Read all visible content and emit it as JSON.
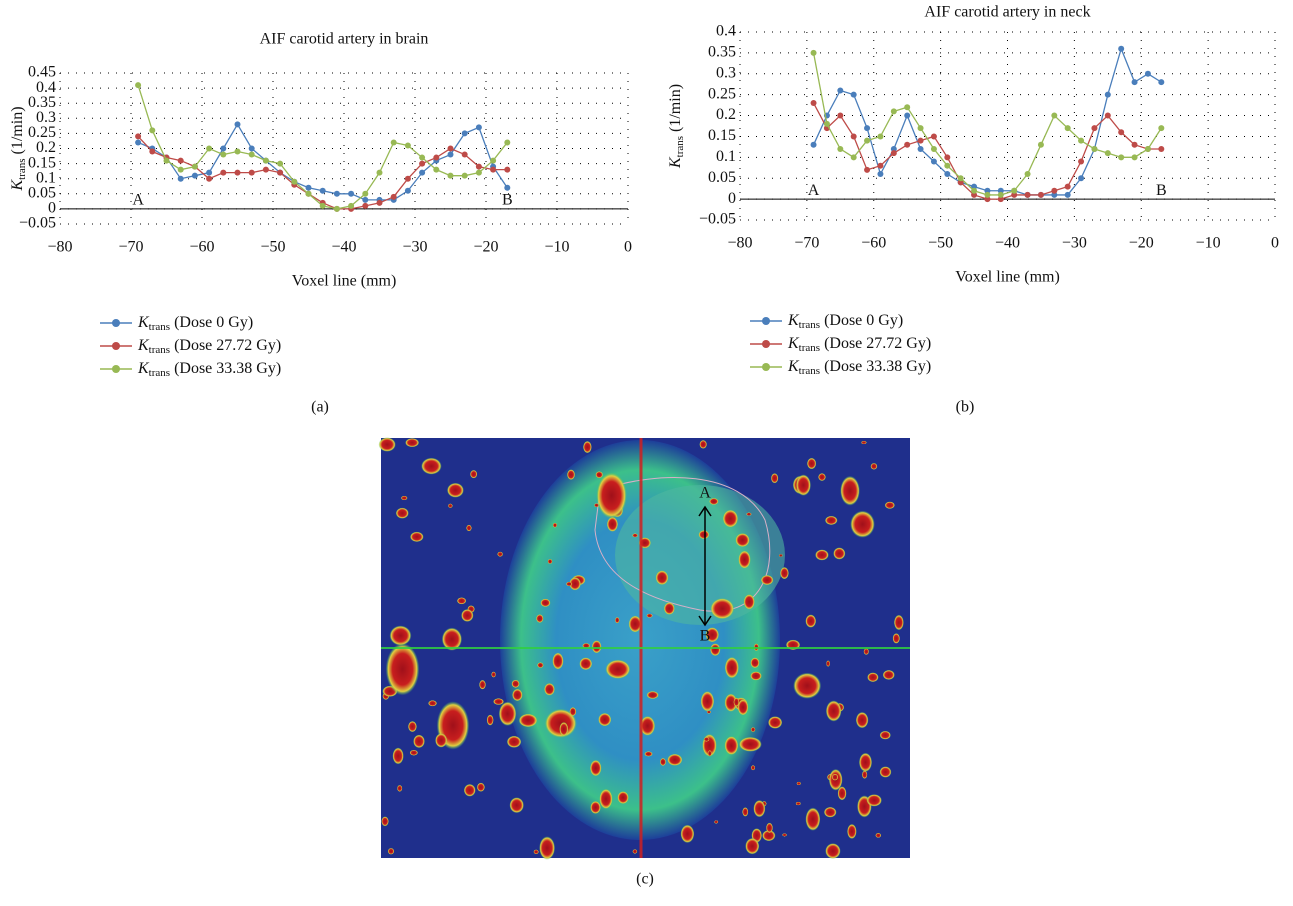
{
  "chart_data": [
    {
      "type": "line",
      "title": "AIF carotid artery in brain",
      "x_label": "Voxel line (mm)",
      "y_label": "Ktrans (1/min)",
      "x": [
        -69,
        -67,
        -65,
        -63,
        -61,
        -59,
        -57,
        -55,
        -53,
        -51,
        -49,
        -47,
        -45,
        -43,
        -41,
        -39,
        -37,
        -35,
        -33,
        -31,
        -29,
        -27,
        -25,
        -23,
        -21,
        -19,
        -17
      ],
      "series": [
        {
          "name": "Ktrans (Dose 0 Gy)",
          "color": "#4a7ebb",
          "values": [
            0.22,
            0.2,
            0.17,
            0.1,
            0.11,
            0.12,
            0.2,
            0.28,
            0.2,
            0.16,
            0.12,
            0.09,
            0.07,
            0.06,
            0.05,
            0.05,
            0.03,
            0.03,
            0.03,
            0.06,
            0.12,
            0.16,
            0.18,
            0.25,
            0.27,
            0.14,
            0.07
          ]
        },
        {
          "name": "Ktrans (Dose 27.72 Gy)",
          "color": "#be4b48",
          "values": [
            0.24,
            0.19,
            0.17,
            0.16,
            0.14,
            0.1,
            0.12,
            0.12,
            0.12,
            0.13,
            0.12,
            0.08,
            0.05,
            0.02,
            0,
            0,
            0.01,
            0.02,
            0.04,
            0.1,
            0.15,
            0.17,
            0.2,
            0.18,
            0.14,
            0.13,
            0.13
          ]
        },
        {
          "name": "Ktrans (Dose 33.38 Gy)",
          "color": "#98b954",
          "values": [
            0.41,
            0.26,
            0.16,
            0.13,
            0.14,
            0.2,
            0.18,
            0.19,
            0.18,
            0.16,
            0.15,
            0.09,
            0.05,
            0.01,
            0,
            0.01,
            0.05,
            0.12,
            0.22,
            0.21,
            0.17,
            0.13,
            0.11,
            0.11,
            0.12,
            0.16,
            0.22
          ]
        }
      ],
      "annotations": [
        "A",
        "B"
      ],
      "xlim": [
        -80,
        0
      ],
      "xticks": [
        {
          "value": -80,
          "label": "−80"
        },
        {
          "value": -70,
          "label": "−70"
        },
        {
          "value": -60,
          "label": "−60"
        },
        {
          "value": -50,
          "label": "−50"
        },
        {
          "value": -40,
          "label": "−40"
        },
        {
          "value": -30,
          "label": "−30"
        },
        {
          "value": -20,
          "label": "−20"
        },
        {
          "value": -10,
          "label": "−10"
        },
        0
      ],
      "ylim": [
        -0.05,
        0.45
      ],
      "yticks": [
        {
          "value": -0.05,
          "label": "−0.05"
        },
        0,
        0.05,
        0.1,
        0.15,
        0.2,
        0.25,
        0.3,
        0.35,
        0.4,
        0.45
      ],
      "grid": true,
      "panel_label": "(a)"
    },
    {
      "type": "line",
      "title": "AIF carotid artery in neck",
      "x_label": "Voxel line (mm)",
      "y_label": "Ktrans (1/min)",
      "x": [
        -69,
        -67,
        -65,
        -63,
        -61,
        -59,
        -57,
        -55,
        -53,
        -51,
        -49,
        -47,
        -45,
        -43,
        -41,
        -39,
        -37,
        -35,
        -33,
        -31,
        -29,
        -27,
        -25,
        -23,
        -21,
        -19,
        -17
      ],
      "series": [
        {
          "name": "Ktrans (Dose 0 Gy)",
          "color": "#4a7ebb",
          "values": [
            0.13,
            0.2,
            0.26,
            0.25,
            0.17,
            0.06,
            0.12,
            0.2,
            0.12,
            0.09,
            0.06,
            0.04,
            0.03,
            0.02,
            0.02,
            0.02,
            0.01,
            0.01,
            0.01,
            0.01,
            0.05,
            0.12,
            0.25,
            0.36,
            0.28,
            0.3,
            0.28
          ]
        },
        {
          "name": "Ktrans (Dose 27.72 Gy)",
          "color": "#be4b48",
          "values": [
            0.23,
            0.17,
            0.2,
            0.15,
            0.07,
            0.08,
            0.11,
            0.13,
            0.14,
            0.15,
            0.1,
            0.04,
            0.01,
            0,
            0,
            0.01,
            0.01,
            0.01,
            0.02,
            0.03,
            0.09,
            0.17,
            0.2,
            0.16,
            0.13,
            0.12,
            0.12
          ]
        },
        {
          "name": "Ktrans (Dose 33.38 Gy)",
          "color": "#98b954",
          "values": [
            0.35,
            0.18,
            0.12,
            0.1,
            0.14,
            0.15,
            0.21,
            0.22,
            0.17,
            0.12,
            0.08,
            0.05,
            0.02,
            0.01,
            0.01,
            0.02,
            0.06,
            0.13,
            0.2,
            0.17,
            0.14,
            0.12,
            0.11,
            0.1,
            0.1,
            0.12,
            0.17
          ]
        }
      ],
      "annotations": [
        "A",
        "B"
      ],
      "xlim": [
        -80,
        0
      ],
      "xticks": [
        {
          "value": -80,
          "label": "−80"
        },
        {
          "value": -70,
          "label": "−70"
        },
        {
          "value": -60,
          "label": "−60"
        },
        {
          "value": -50,
          "label": "−50"
        },
        {
          "value": -40,
          "label": "−40"
        },
        {
          "value": -30,
          "label": "−30"
        },
        {
          "value": -20,
          "label": "−20"
        },
        {
          "value": -10,
          "label": "−10"
        },
        0
      ],
      "ylim": [
        -0.05,
        0.4
      ],
      "yticks": [
        {
          "value": -0.05,
          "label": "−0.05"
        },
        0,
        0.05,
        0.1,
        0.15,
        0.2,
        0.25,
        0.3,
        0.35,
        0.4
      ],
      "grid": true,
      "panel_label": "(b)"
    }
  ],
  "image_panel": {
    "panel_label": "(c)",
    "labels": [
      "A",
      "B"
    ]
  }
}
